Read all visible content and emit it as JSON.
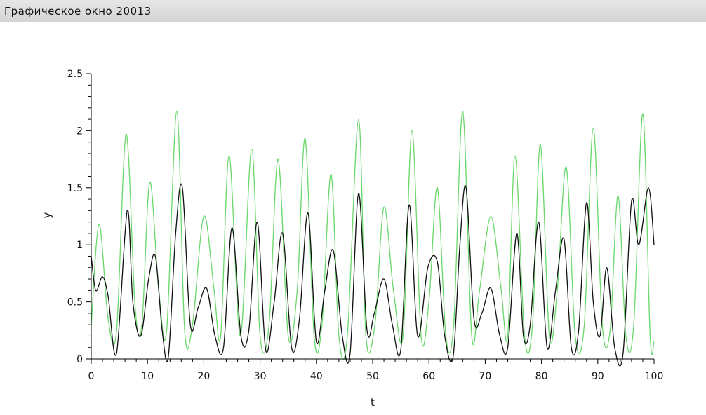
{
  "window": {
    "title": "Графическое окно 20013"
  },
  "chart_data": {
    "type": "line",
    "title": "",
    "xlabel": "t",
    "ylabel": "y",
    "xlim": [
      0,
      100
    ],
    "ylim": [
      0,
      2.5
    ],
    "xticks": [
      "0",
      "10",
      "20",
      "30",
      "40",
      "50",
      "60",
      "70",
      "80",
      "90",
      "100"
    ],
    "yticks": [
      "0",
      "0.5",
      "1",
      "1.5",
      "2",
      "2.5"
    ],
    "grid": false,
    "legend": "none",
    "series": [
      {
        "color": "#111111",
        "x": [
          0,
          0.8,
          2,
          3,
          4.5,
          6.4,
          7.4,
          8.8,
          10.2,
          11.4,
          12.6,
          13.7,
          15,
          16.2,
          17.6,
          19,
          20.5,
          22,
          23.5,
          25,
          26.6,
          28,
          29.5,
          31,
          32.5,
          34,
          35.6,
          37,
          38.5,
          40,
          41.5,
          43,
          44.6,
          46,
          47.5,
          49,
          50.3,
          52,
          53.5,
          55,
          56.5,
          58,
          59.8,
          61.5,
          62.8,
          64.3,
          65.5,
          66.6,
          68,
          69.4,
          71,
          72.6,
          74,
          75.6,
          76.8,
          78,
          79.5,
          81,
          82.5,
          84,
          85.3,
          86.6,
          88,
          89.2,
          90.4,
          91.6,
          93,
          94.5,
          96,
          97.3,
          99,
          100
        ],
        "values": [
          0.9,
          0.6,
          0.72,
          0.55,
          0.05,
          1.3,
          0.5,
          0.2,
          0.7,
          0.9,
          0.25,
          0.02,
          1.1,
          1.5,
          0.3,
          0.45,
          0.62,
          0.2,
          0.1,
          1.15,
          0.2,
          0.25,
          1.2,
          0.08,
          0.5,
          1.1,
          0.1,
          0.35,
          1.28,
          0.15,
          0.6,
          0.95,
          0.2,
          0.05,
          1.45,
          0.25,
          0.4,
          0.7,
          0.3,
          0.08,
          1.35,
          0.2,
          0.8,
          0.85,
          0.2,
          0.02,
          1.0,
          1.5,
          0.35,
          0.4,
          0.62,
          0.2,
          0.1,
          1.1,
          0.2,
          0.3,
          1.2,
          0.1,
          0.6,
          1.05,
          0.1,
          0.25,
          1.37,
          0.5,
          0.2,
          0.8,
          0.1,
          0.05,
          1.38,
          1.0,
          1.5,
          1.0
        ]
      },
      {
        "color": "#6bd86b",
        "x": [
          0,
          1.4,
          3,
          4.5,
          6.2,
          7.8,
          9,
          10.4,
          12,
          13.4,
          15.2,
          16.6,
          18,
          20,
          21.8,
          23,
          24.5,
          26.5,
          28.5,
          30,
          31.6,
          33.2,
          35,
          36.6,
          38,
          39.6,
          41,
          42.6,
          44,
          45.5,
          47.5,
          48.8,
          50.4,
          52,
          53.7,
          55.4,
          57,
          58.6,
          60,
          61.5,
          63,
          64.4,
          66,
          67.6,
          69,
          71,
          72.8,
          74,
          75.3,
          77,
          78.4,
          79.8,
          81.4,
          82.8,
          84.4,
          86,
          87.6,
          89.2,
          90.8,
          92.2,
          93.6,
          95,
          96.4,
          98,
          99.3,
          100
        ],
        "values": [
          0.3,
          1.18,
          0.35,
          0.25,
          1.97,
          0.45,
          0.3,
          1.55,
          0.6,
          0.25,
          2.17,
          0.25,
          0.3,
          1.25,
          0.62,
          0.2,
          1.78,
          0.2,
          1.84,
          0.2,
          0.3,
          1.75,
          0.2,
          0.6,
          1.93,
          0.2,
          0.3,
          1.62,
          0.2,
          0.2,
          2.1,
          0.2,
          0.3,
          1.33,
          0.6,
          0.2,
          2.0,
          0.2,
          0.5,
          1.5,
          0.2,
          0.3,
          2.17,
          0.2,
          0.6,
          1.25,
          0.62,
          0.2,
          1.78,
          0.2,
          0.3,
          1.88,
          0.2,
          0.6,
          1.68,
          0.2,
          0.3,
          2.02,
          0.3,
          0.25,
          1.43,
          0.2,
          0.3,
          2.15,
          0.2,
          0.15
        ]
      }
    ]
  }
}
